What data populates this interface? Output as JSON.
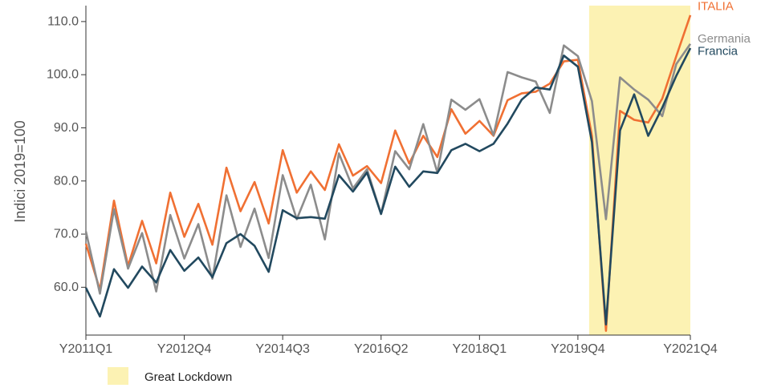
{
  "chart_data": {
    "type": "line",
    "ylabel": "Indici 2019=100",
    "ylim": [
      51,
      113
    ],
    "yticks": [
      "60.0",
      "70.0",
      "80.0",
      "90.0",
      "100.0",
      "110.0"
    ],
    "x": [
      "2011Q1",
      "2011Q2",
      "2011Q3",
      "2011Q4",
      "2012Q1",
      "2012Q2",
      "2012Q3",
      "2012Q4",
      "2013Q1",
      "2013Q2",
      "2013Q3",
      "2013Q4",
      "2014Q1",
      "2014Q2",
      "2014Q3",
      "2014Q4",
      "2015Q1",
      "2015Q2",
      "2015Q3",
      "2015Q4",
      "2016Q1",
      "2016Q2",
      "2016Q3",
      "2016Q4",
      "2017Q1",
      "2017Q2",
      "2017Q3",
      "2017Q4",
      "2018Q1",
      "2018Q2",
      "2018Q3",
      "2018Q4",
      "2019Q1",
      "2019Q2",
      "2019Q3",
      "2019Q4",
      "2020Q1",
      "2020Q2",
      "2020Q3",
      "2020Q4",
      "2021Q1",
      "2021Q2",
      "2021Q3",
      "2021Q4"
    ],
    "xticks": [
      "Y2011Q1",
      "Y2012Q4",
      "Y2014Q3",
      "Y2016Q2",
      "Y2018Q1",
      "Y2019Q4",
      "Y2021Q4"
    ],
    "series": [
      {
        "name": "ITALIA",
        "color": "#f07033",
        "values": [
          68.2,
          59.5,
          76.3,
          64.0,
          72.5,
          64.5,
          77.8,
          69.5,
          75.7,
          68.0,
          82.5,
          74.3,
          79.8,
          72.0,
          85.8,
          77.8,
          81.8,
          78.3,
          86.9,
          81.0,
          82.8,
          79.6,
          89.5,
          83.3,
          88.5,
          84.5,
          93.5,
          88.9,
          91.3,
          88.5,
          95.2,
          96.5,
          96.8,
          98.3,
          102.5,
          102.8,
          88.5,
          51.8,
          93.2,
          91.5,
          91.0,
          95.5,
          103.5,
          111.2
        ]
      },
      {
        "name": "Germania",
        "color": "#8c8c8c",
        "values": [
          70.5,
          58.8,
          74.7,
          63.5,
          70.2,
          59.2,
          73.6,
          65.4,
          71.9,
          61.6,
          77.3,
          67.6,
          74.8,
          65.5,
          81.1,
          72.8,
          79.3,
          69.0,
          85.2,
          78.6,
          82.2,
          73.8,
          85.6,
          82.2,
          90.7,
          81.6,
          95.3,
          93.4,
          95.4,
          88.6,
          100.5,
          99.5,
          98.7,
          92.8,
          105.5,
          103.5,
          95.0,
          72.8,
          99.5,
          97.2,
          95.3,
          92.2,
          102.0,
          105.8
        ]
      },
      {
        "name": "Francia",
        "color": "#22495f",
        "values": [
          59.9,
          54.5,
          63.4,
          59.9,
          63.9,
          60.9,
          67.0,
          63.1,
          65.6,
          61.9,
          68.3,
          70.0,
          67.8,
          62.9,
          74.5,
          73.0,
          73.2,
          72.9,
          81.1,
          78.0,
          81.6,
          73.8,
          82.7,
          78.9,
          81.8,
          81.5,
          85.8,
          87.0,
          85.6,
          87.0,
          90.8,
          95.3,
          97.6,
          97.2,
          103.6,
          101.5,
          87.3,
          53.0,
          89.5,
          96.3,
          88.5,
          93.8,
          99.8,
          105.0
        ]
      }
    ],
    "shaded_region": {
      "label": "Great Lockdown",
      "start": "2020Q1",
      "end": "2021Q4",
      "color": "#fcf2b3"
    },
    "legend": {
      "entries": [
        "Great Lockdown"
      ],
      "placement": "bottom-left"
    }
  }
}
